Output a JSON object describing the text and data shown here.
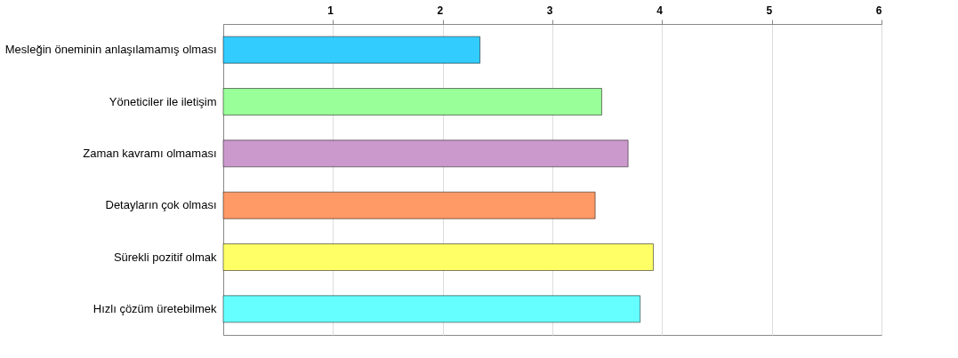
{
  "chart_data": {
    "type": "bar",
    "orientation": "horizontal",
    "categories": [
      "Mesleğin öneminin anlaşılamamış olması",
      "Yöneticiler ile iletişim",
      "Zaman kavramı olmaması",
      "Detayların çok olması",
      "Sürekli pozitif olmak",
      "Hızlı çözüm üretebilmek"
    ],
    "values": [
      2.34,
      3.45,
      3.69,
      3.39,
      3.92,
      3.8
    ],
    "colors": [
      "#33ccff",
      "#99ff99",
      "#cc99cc",
      "#ff9966",
      "#ffff66",
      "#66ffff"
    ],
    "xlim": [
      0,
      6
    ],
    "xticks": [
      1,
      2,
      3,
      4,
      5,
      6
    ],
    "grid": "x"
  }
}
